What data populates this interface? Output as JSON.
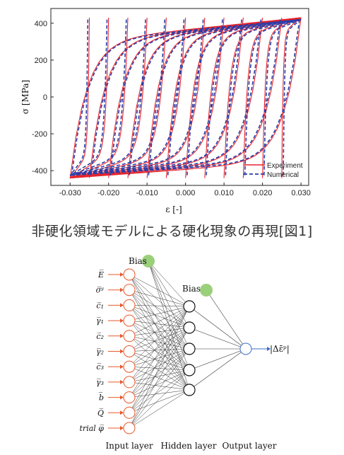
{
  "caption": "非硬化領域モデルによる硬化現象の再現[図1]",
  "chart_data": {
    "type": "line",
    "xlabel": "ε [-]",
    "ylabel": "σ [MPa]",
    "xlim": [
      -0.035,
      0.032
    ],
    "ylim": [
      -480,
      480
    ],
    "x_ticks": [
      "-0.030",
      "-0.020",
      "-0.010",
      "0.000",
      "0.010",
      "0.020",
      "0.030"
    ],
    "x_tick_values": [
      -0.03,
      -0.02,
      -0.01,
      0.0,
      0.01,
      0.02,
      0.03
    ],
    "y_ticks": [
      "400",
      "200",
      "0",
      "-200",
      "-400"
    ],
    "y_tick_values": [
      400,
      200,
      0,
      -200,
      -400
    ],
    "legend_position": "bottom-right",
    "series": [
      {
        "name": "Experiment",
        "color": "#e8232b",
        "style": "solid"
      },
      {
        "name": "Numerical",
        "color": "#2b3ea8",
        "style": "dashed"
      }
    ],
    "reversal_strains": [
      -0.03,
      -0.025,
      -0.02,
      -0.015,
      -0.01,
      -0.005,
      0.0,
      0.005,
      0.01,
      0.015,
      0.02,
      0.025,
      0.03
    ],
    "peak_stress_compression": -440,
    "peak_stress_tension": 430
  },
  "network": {
    "bias_label_input": "Bias",
    "bias_label_hidden": "Bias",
    "inputs": [
      "E̅",
      "σ̅ʸ",
      "c̅₁",
      "γ̅₁",
      "c̅₂",
      "γ̅₂",
      "c̅₃",
      "γ̅₃",
      "b̅",
      "Q̅",
      "trial φ̅"
    ],
    "hidden_count": 5,
    "output_label": "|Δε̄ᵖ|",
    "layer_labels": [
      "Input layer",
      "Hidden layer",
      "Output layer"
    ],
    "colors": {
      "input": "#e8592b",
      "hidden": "#111111",
      "output": "#3a6fc4",
      "bias": "#9bd07a"
    }
  }
}
